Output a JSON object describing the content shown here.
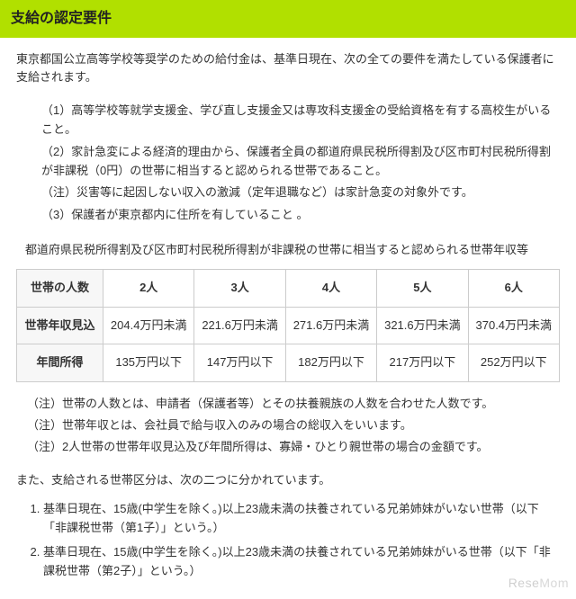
{
  "header": {
    "title": "支給の認定要件"
  },
  "intro": "東京都国公立高等学校等奨学のための給付金は、基準日現在、次の全ての要件を満たしている保護者に支給されます。",
  "requirements": {
    "items": [
      "（1）高等学校等就学支援金、学び直し支援金又は専攻科支援金の受給資格を有する高校生がいること。",
      "（2）家計急変による経済的理由から、保護者全員の都道府県民税所得割及び区市町村民税所得割が非課税（0円）の世帯に相当すると認められる世帯であること。",
      "（3）保護者が東京都内に住所を有していること 。"
    ],
    "sub_note": "（注）災害等に起因しない収入の激減（定年退職など）は家計急変の対象外です。"
  },
  "table_intro": "都道府県民税所得割及び区市町村民税所得割が非課税の世帯に相当すると認められる世帯年収等",
  "table": {
    "col_header": "世帯の人数",
    "cols": [
      "2人",
      "3人",
      "4人",
      "5人",
      "6人"
    ],
    "rows": [
      {
        "label": "世帯年収見込",
        "cells": [
          "204.4万円未満",
          "221.6万円未満",
          "271.6万円未満",
          "321.6万円未満",
          "370.4万円未満"
        ]
      },
      {
        "label": "年間所得",
        "cells": [
          "135万円以下",
          "147万円以下",
          "182万円以下",
          "217万円以下",
          "252万円以下"
        ]
      }
    ]
  },
  "table_notes": [
    "（注）世帯の人数とは、申請者（保護者等）とその扶養親族の人数を合わせた人数です。",
    "（注）世帯年収とは、会社員で給与収入のみの場合の総収入をいいます。",
    "（注）2人世帯の世帯年収見込及び年間所得は、寡婦・ひとり親世帯の場合の金額です。"
  ],
  "mid_para": "また、支給される世帯区分は、次の二つに分かれています。",
  "categories": [
    "基準日現在、15歳(中学生を除く。)以上23歳未満の扶養されている兄弟姉妹がいない世帯（以下「非課税世帯（第1子）」という。）",
    "基準日現在、15歳(中学生を除く。)以上23歳未満の扶養されている兄弟姉妹がいる世帯（以下「非課税世帯（第2子）」という。）"
  ],
  "watermark": {
    "a": "Rese",
    "b": "Mom"
  }
}
